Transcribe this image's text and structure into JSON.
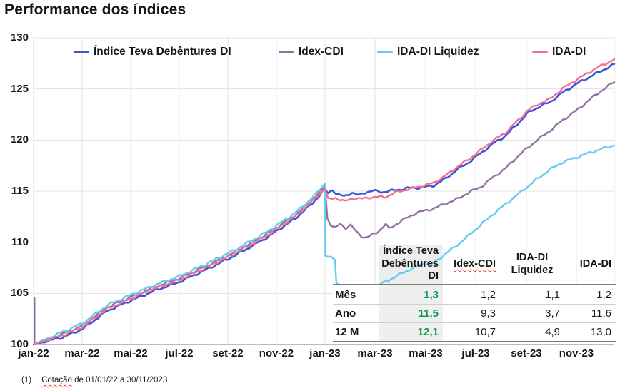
{
  "title": "Performance dos índices",
  "footnote": {
    "marker": "(1)",
    "word": "Cotação",
    "rest": " de 01/01/22 a 30/11/2023"
  },
  "colors": {
    "teva": "#3d55d8",
    "idex": "#9173a3",
    "ida_liquidez": "#66ccee",
    "ida": "#f2708f",
    "table_green": "#0a9a48",
    "grid": "#e3e3e3",
    "axis": "#a6a6a6",
    "header_shade": "#ededed",
    "start_spike": "#8a6fa5"
  },
  "chart_data": {
    "type": "line",
    "title": "Performance dos índices",
    "xlabel": "",
    "ylabel": "",
    "ylim": [
      100,
      130
    ],
    "grid": true,
    "legend_position": "top-inside",
    "y_axis": {
      "ticks": [
        "130",
        "125",
        "120",
        "115",
        "110",
        "105",
        "100"
      ],
      "values": [
        130,
        125,
        120,
        115,
        110,
        105,
        100
      ]
    },
    "x_axis": {
      "labels": [
        "jan-22",
        "mar-22",
        "mai-22",
        "jul-22",
        "set-22",
        "nov-22",
        "jan-23",
        "mar-23",
        "mai-23",
        "jul-23",
        "set-23",
        "nov-23"
      ],
      "positions": [
        0,
        0.0836,
        0.1673,
        0.2509,
        0.3346,
        0.4182,
        0.5018,
        0.5879,
        0.6753,
        0.7614,
        0.8487,
        0.9348
      ]
    },
    "series": [
      {
        "name": "Índice Teva Debêntures DI",
        "color": "#3d55d8",
        "anchors": [
          [
            0,
            100
          ],
          [
            0.05,
            100.7
          ],
          [
            0.0836,
            101.5
          ],
          [
            0.127,
            103.3
          ],
          [
            0.1673,
            104.3
          ],
          [
            0.21,
            105.3
          ],
          [
            0.25,
            106.1
          ],
          [
            0.3,
            107.4
          ],
          [
            0.35,
            108.8
          ],
          [
            0.4,
            110.4
          ],
          [
            0.45,
            112.3
          ],
          [
            0.48,
            113.8
          ],
          [
            0.5018,
            115.2
          ],
          [
            0.507,
            114.8
          ],
          [
            0.515,
            115.15
          ],
          [
            0.522,
            114.7
          ],
          [
            0.535,
            114.5
          ],
          [
            0.548,
            114.85
          ],
          [
            0.56,
            114.6
          ],
          [
            0.572,
            114.9
          ],
          [
            0.585,
            115.05
          ],
          [
            0.6,
            114.9
          ],
          [
            0.61,
            115.0
          ],
          [
            0.625,
            115.1
          ],
          [
            0.645,
            115.3
          ],
          [
            0.668,
            115.35
          ],
          [
            0.689,
            115.55
          ],
          [
            0.709,
            116.2
          ],
          [
            0.729,
            117.1
          ],
          [
            0.749,
            117.8
          ],
          [
            0.77,
            118.7
          ],
          [
            0.79,
            119.6
          ],
          [
            0.812,
            120.4
          ],
          [
            0.832,
            121.5
          ],
          [
            0.852,
            122.7
          ],
          [
            0.872,
            123.3
          ],
          [
            0.889,
            123.7
          ],
          [
            0.91,
            124.6
          ],
          [
            0.935,
            125.5
          ],
          [
            0.965,
            126.4
          ],
          [
            1,
            127.4
          ]
        ]
      },
      {
        "name": "Idex-CDI",
        "color": "#9173a3",
        "anchors": [
          [
            0,
            100
          ],
          [
            0.05,
            101.05
          ],
          [
            0.0836,
            101.85
          ],
          [
            0.127,
            103.65
          ],
          [
            0.1673,
            104.65
          ],
          [
            0.21,
            105.65
          ],
          [
            0.25,
            106.45
          ],
          [
            0.3,
            107.75
          ],
          [
            0.35,
            109.15
          ],
          [
            0.4,
            110.75
          ],
          [
            0.45,
            112.65
          ],
          [
            0.48,
            114.15
          ],
          [
            0.5018,
            115.45
          ],
          [
            0.506,
            112.3
          ],
          [
            0.512,
            111.7
          ],
          [
            0.52,
            111.4
          ],
          [
            0.528,
            111.8
          ],
          [
            0.537,
            111.4
          ],
          [
            0.546,
            111.7
          ],
          [
            0.556,
            111.0
          ],
          [
            0.565,
            110.6
          ],
          [
            0.572,
            110.45
          ],
          [
            0.58,
            110.65
          ],
          [
            0.59,
            110.9
          ],
          [
            0.6,
            111.4
          ],
          [
            0.6064,
            111.8
          ],
          [
            0.612,
            111.3
          ],
          [
            0.62,
            111.6
          ],
          [
            0.633,
            112.1
          ],
          [
            0.647,
            112.5
          ],
          [
            0.66,
            112.9
          ],
          [
            0.675,
            113.1
          ],
          [
            0.689,
            113.3
          ],
          [
            0.71,
            113.8
          ],
          [
            0.729,
            114.2
          ],
          [
            0.75,
            114.9
          ],
          [
            0.77,
            115.4
          ],
          [
            0.79,
            116.3
          ],
          [
            0.812,
            117.2
          ],
          [
            0.832,
            118.3
          ],
          [
            0.852,
            119.3
          ],
          [
            0.872,
            120.2
          ],
          [
            0.889,
            120.9
          ],
          [
            0.91,
            121.9
          ],
          [
            0.935,
            122.9
          ],
          [
            0.965,
            124.3
          ],
          [
            1,
            125.7
          ]
        ]
      },
      {
        "name": "IDA-DI Liquidez",
        "color": "#66ccee",
        "anchors": [
          [
            0,
            100
          ],
          [
            0.05,
            101.25
          ],
          [
            0.0836,
            102.05
          ],
          [
            0.127,
            103.85
          ],
          [
            0.1673,
            104.85
          ],
          [
            0.21,
            105.85
          ],
          [
            0.25,
            106.65
          ],
          [
            0.3,
            107.95
          ],
          [
            0.35,
            109.35
          ],
          [
            0.4,
            110.95
          ],
          [
            0.45,
            112.85
          ],
          [
            0.48,
            114.35
          ],
          [
            0.5018,
            115.75
          ],
          [
            0.5024,
            108.7
          ],
          [
            0.511,
            108.5
          ],
          [
            0.519,
            108.3
          ],
          [
            0.5215,
            105.95
          ],
          [
            0.53,
            105.85
          ],
          [
            0.545,
            105.7
          ],
          [
            0.558,
            105.6
          ],
          [
            0.572,
            105.65
          ],
          [
            0.585,
            105.75
          ],
          [
            0.6,
            105.95
          ],
          [
            0.615,
            106.4
          ],
          [
            0.632,
            106.9
          ],
          [
            0.65,
            107.4
          ],
          [
            0.67,
            107.9
          ],
          [
            0.689,
            107.95
          ],
          [
            0.71,
            108.9
          ],
          [
            0.729,
            109.7
          ],
          [
            0.75,
            110.7
          ],
          [
            0.77,
            111.7
          ],
          [
            0.79,
            112.7
          ],
          [
            0.812,
            113.7
          ],
          [
            0.832,
            114.6
          ],
          [
            0.852,
            115.5
          ],
          [
            0.872,
            116.4
          ],
          [
            0.889,
            117.1
          ],
          [
            0.91,
            117.8
          ],
          [
            0.935,
            118.3
          ],
          [
            0.965,
            118.9
          ],
          [
            1,
            119.5
          ]
        ]
      },
      {
        "name": "IDA-DI",
        "color": "#f2708f",
        "anchors": [
          [
            0,
            100
          ],
          [
            0.05,
            100.9
          ],
          [
            0.0836,
            101.7
          ],
          [
            0.127,
            103.5
          ],
          [
            0.1673,
            104.5
          ],
          [
            0.21,
            105.5
          ],
          [
            0.25,
            106.3
          ],
          [
            0.3,
            107.6
          ],
          [
            0.35,
            109.0
          ],
          [
            0.4,
            110.6
          ],
          [
            0.45,
            112.5
          ],
          [
            0.48,
            114.0
          ],
          [
            0.5018,
            115.3
          ],
          [
            0.507,
            114.2
          ],
          [
            0.52,
            114.35
          ],
          [
            0.535,
            114.0
          ],
          [
            0.55,
            114.3
          ],
          [
            0.565,
            114.25
          ],
          [
            0.58,
            114.4
          ],
          [
            0.6064,
            114.45
          ],
          [
            0.625,
            114.9
          ],
          [
            0.645,
            115.2
          ],
          [
            0.668,
            115.5
          ],
          [
            0.689,
            115.8
          ],
          [
            0.709,
            116.5
          ],
          [
            0.729,
            117.35
          ],
          [
            0.749,
            118.1
          ],
          [
            0.77,
            119.0
          ],
          [
            0.79,
            119.9
          ],
          [
            0.812,
            120.7
          ],
          [
            0.832,
            121.8
          ],
          [
            0.852,
            122.95
          ],
          [
            0.872,
            123.6
          ],
          [
            0.889,
            124.0
          ],
          [
            0.91,
            125.0
          ],
          [
            0.935,
            125.9
          ],
          [
            0.965,
            126.9
          ],
          [
            1,
            127.9
          ]
        ]
      }
    ]
  },
  "legend": {
    "items": [
      {
        "label": "Índice Teva Debêntures DI",
        "color": "#3d55d8"
      },
      {
        "label": "Idex-CDI",
        "color": "#9173a3"
      },
      {
        "label": "IDA-DI Liquidez",
        "color": "#66ccee"
      },
      {
        "label": "IDA-DI",
        "color": "#f2708f"
      }
    ]
  },
  "table": {
    "columns": [
      "",
      "Índice Teva Debêntures DI",
      "Idex-CDI",
      "IDA-DI Liquidez",
      "IDA-DI"
    ],
    "misspell_underline": "Idex-CDI",
    "rows": [
      {
        "label": "Mês",
        "values": [
          "1,3",
          "1,2",
          "1,1",
          "1,2"
        ]
      },
      {
        "label": "Ano",
        "values": [
          "11,5",
          "9,3",
          "3,7",
          "11,6"
        ]
      },
      {
        "label": "12 M",
        "values": [
          "12,1",
          "10,7",
          "4,9",
          "13,0"
        ]
      }
    ]
  }
}
